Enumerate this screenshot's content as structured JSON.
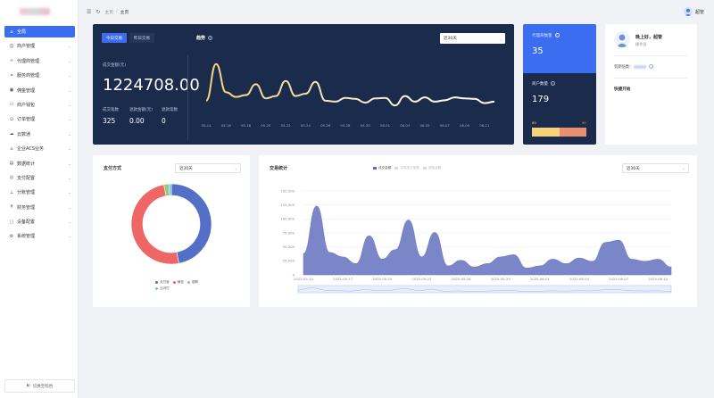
{
  "sidebar": {
    "items": [
      {
        "label": "全局",
        "icon": "home-icon",
        "active": true
      },
      {
        "label": "商户管理",
        "icon": "user-icon"
      },
      {
        "label": "代理商管理",
        "icon": "link-icon"
      },
      {
        "label": "服务商管理",
        "icon": "handshake-icon"
      },
      {
        "label": "佣金管理",
        "icon": "wallet-icon"
      },
      {
        "label": "商户钱包",
        "icon": "card-icon"
      },
      {
        "label": "订单管理",
        "icon": "order-icon"
      },
      {
        "label": "云数通",
        "icon": "cloud-icon"
      },
      {
        "label": "企业ACS业务",
        "icon": "bank-icon"
      },
      {
        "label": "数据统计",
        "icon": "chart-icon"
      },
      {
        "label": "支付配置",
        "icon": "pay-icon"
      },
      {
        "label": "分账管理",
        "icon": "split-icon"
      },
      {
        "label": "财务管理",
        "icon": "finance-icon"
      },
      {
        "label": "设备配置",
        "icon": "device-icon"
      },
      {
        "label": "系统管理",
        "icon": "settings-icon"
      }
    ],
    "footer_label": "切换至暗色"
  },
  "header": {
    "breadcrumb": [
      "主页",
      "主页"
    ],
    "username": "超管"
  },
  "trade": {
    "tabs": [
      "今日交易",
      "昨日交易"
    ],
    "amount_label": "成交金额(元)",
    "amount": "1224708.00",
    "count_label": "成交笔数",
    "count": "325",
    "refund_amount_label": "退款金额(元)",
    "refund_amount": "0.00",
    "refund_count_label": "退款笔数",
    "refund_count": "0",
    "trend_title": "趋势",
    "trend_select": "近30天"
  },
  "trend_chart": {
    "x_ticks": [
      "05-14",
      "05-16",
      "05-18",
      "05-20",
      "05-22",
      "05-24",
      "05-26",
      "05-28",
      "05-30",
      "06-01",
      "06-03",
      "06-05",
      "06-07",
      "06-09",
      "06-11"
    ],
    "color_start": "#f6d27a",
    "color_end": "#ffffff"
  },
  "agent": {
    "top_label": "代理商数量",
    "top_value": "35",
    "bottom_label": "商户数量",
    "bottom_value": "179",
    "bar_left": "89",
    "bar_right": "90"
  },
  "welcome": {
    "greeting": "晚上好，超管",
    "role": "操作员",
    "expire_label": "到期倍数：",
    "quick_title": "快捷开始"
  },
  "pay": {
    "title": "支付方式",
    "select": "近30天",
    "legend": [
      {
        "name": "支付宝",
        "color": "#5470c6"
      },
      {
        "name": "微信",
        "color": "#ee6666"
      },
      {
        "name": "银联",
        "color": "#91cc75"
      },
      {
        "name": "云闪付",
        "color": "#73c0de"
      }
    ]
  },
  "stats": {
    "title": "交易统计",
    "select": "近30天",
    "legend": [
      {
        "name": "成交金额",
        "color": "#5470c6"
      },
      {
        "name": "实际成交笔数",
        "color": "#d9d9d9"
      },
      {
        "name": "退款金额",
        "color": "#d9d9d9"
      }
    ]
  },
  "chart_data": [
    {
      "type": "line",
      "x": [
        "05-14",
        "05-15",
        "05-16",
        "05-17",
        "05-18",
        "05-19",
        "05-20",
        "05-21",
        "05-22",
        "05-23",
        "05-24",
        "05-25",
        "05-26",
        "05-27",
        "05-28",
        "05-29",
        "05-30",
        "05-31",
        "06-01",
        "06-02",
        "06-03",
        "06-04",
        "06-05",
        "06-06",
        "06-07",
        "06-08",
        "06-09",
        "06-10",
        "06-11",
        "06-12"
      ],
      "values": [
        40,
        118,
        58,
        48,
        52,
        75,
        45,
        50,
        82,
        50,
        55,
        80,
        40,
        38,
        46,
        44,
        36,
        45,
        46,
        30,
        50,
        38,
        47,
        38,
        41,
        47,
        45,
        44,
        35,
        38
      ]
    },
    {
      "type": "pie",
      "labels": [
        "支付宝",
        "微信",
        "银联",
        "云闪付"
      ],
      "values": [
        47,
        50,
        2,
        1
      ]
    },
    {
      "type": "area",
      "x": [
        "2025-05-14",
        "2025-05-15",
        "2025-05-16",
        "2025-05-17",
        "2025-05-18",
        "2025-05-19",
        "2025-05-20",
        "2025-05-21",
        "2025-05-22",
        "2025-05-23",
        "2025-05-24",
        "2025-05-25",
        "2025-05-26",
        "2025-05-27",
        "2025-05-28",
        "2025-05-29",
        "2025-05-30",
        "2025-05-31",
        "2025-06-01",
        "2025-06-02",
        "2025-06-03",
        "2025-06-04",
        "2025-06-05",
        "2025-06-06",
        "2025-06-07",
        "2025-06-08",
        "2025-06-09",
        "2025-06-10",
        "2025-06-11"
      ],
      "x_tick_labels": [
        "2025-05-14",
        "2025-05-17",
        "2025-05-20",
        "2025-05-23",
        "2025-05-26",
        "2025-05-29",
        "2025-06-01",
        "2025-06-04",
        "2025-06-07",
        "2025-06-10"
      ],
      "series": [
        {
          "name": "成交金额",
          "values": [
            38000,
            123000,
            40000,
            32000,
            20000,
            70000,
            28000,
            45000,
            98000,
            32000,
            76000,
            16000,
            26000,
            14000,
            20000,
            32000,
            36000,
            12000,
            16000,
            28000,
            20000,
            30000,
            24000,
            58000,
            62000,
            28000,
            24000,
            28000,
            14000
          ]
        }
      ],
      "y_ticks": [
        "0",
        "25,000",
        "50,000",
        "75,000",
        "100,000",
        "125,000",
        "150,000"
      ],
      "ylim": [
        0,
        150000
      ]
    }
  ]
}
